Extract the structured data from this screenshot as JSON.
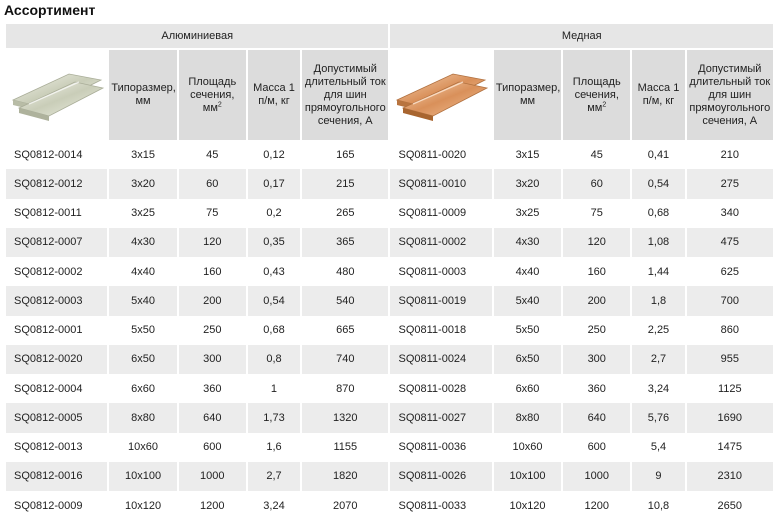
{
  "title": "Ассортимент",
  "groups": {
    "aluminum": "Алюминиевая",
    "copper": "Медная"
  },
  "columns": {
    "size": "Типоразмер, мм",
    "area": "Площадь сечения, мм",
    "area_sup": "2",
    "mass": "Масса 1 п/м, кг",
    "current": "Допустимый длительный ток для шин прямоугольного сечения, А"
  },
  "images": {
    "aluminum": "aluminum-bar-icon",
    "copper": "copper-bar-icon"
  },
  "rows": [
    {
      "al_code": "SQ0812-0014",
      "al_size": "3x15",
      "al_area": "45",
      "al_mass": "0,12",
      "al_current": "165",
      "cu_code": "SQ0811-0020",
      "cu_size": "3x15",
      "cu_area": "45",
      "cu_mass": "0,41",
      "cu_current": "210"
    },
    {
      "al_code": "SQ0812-0012",
      "al_size": "3x20",
      "al_area": "60",
      "al_mass": "0,17",
      "al_current": "215",
      "cu_code": "SQ0811-0010",
      "cu_size": "3x20",
      "cu_area": "60",
      "cu_mass": "0,54",
      "cu_current": "275"
    },
    {
      "al_code": "SQ0812-0011",
      "al_size": "3x25",
      "al_area": "75",
      "al_mass": "0,2",
      "al_current": "265",
      "cu_code": "SQ0811-0009",
      "cu_size": "3x25",
      "cu_area": "75",
      "cu_mass": "0,68",
      "cu_current": "340"
    },
    {
      "al_code": "SQ0812-0007",
      "al_size": "4x30",
      "al_area": "120",
      "al_mass": "0,35",
      "al_current": "365",
      "cu_code": "SQ0811-0002",
      "cu_size": "4x30",
      "cu_area": "120",
      "cu_mass": "1,08",
      "cu_current": "475"
    },
    {
      "al_code": "SQ0812-0002",
      "al_size": "4x40",
      "al_area": "160",
      "al_mass": "0,43",
      "al_current": "480",
      "cu_code": "SQ0811-0003",
      "cu_size": "4x40",
      "cu_area": "160",
      "cu_mass": "1,44",
      "cu_current": "625"
    },
    {
      "al_code": "SQ0812-0003",
      "al_size": "5x40",
      "al_area": "200",
      "al_mass": "0,54",
      "al_current": "540",
      "cu_code": "SQ0811-0019",
      "cu_size": "5x40",
      "cu_area": "200",
      "cu_mass": "1,8",
      "cu_current": "700"
    },
    {
      "al_code": "SQ0812-0001",
      "al_size": "5x50",
      "al_area": "250",
      "al_mass": "0,68",
      "al_current": "665",
      "cu_code": "SQ0811-0018",
      "cu_size": "5x50",
      "cu_area": "250",
      "cu_mass": "2,25",
      "cu_current": "860"
    },
    {
      "al_code": "SQ0812-0020",
      "al_size": "6x50",
      "al_area": "300",
      "al_mass": "0,8",
      "al_current": "740",
      "cu_code": "SQ0811-0024",
      "cu_size": "6x50",
      "cu_area": "300",
      "cu_mass": "2,7",
      "cu_current": "955"
    },
    {
      "al_code": "SQ0812-0004",
      "al_size": "6x60",
      "al_area": "360",
      "al_mass": "1",
      "al_current": "870",
      "cu_code": "SQ0811-0028",
      "cu_size": "6x60",
      "cu_area": "360",
      "cu_mass": "3,24",
      "cu_current": "1125"
    },
    {
      "al_code": "SQ0812-0005",
      "al_size": "8x80",
      "al_area": "640",
      "al_mass": "1,73",
      "al_current": "1320",
      "cu_code": "SQ0811-0027",
      "cu_size": "8x80",
      "cu_area": "640",
      "cu_mass": "5,76",
      "cu_current": "1690"
    },
    {
      "al_code": "SQ0812-0013",
      "al_size": "10x60",
      "al_area": "600",
      "al_mass": "1,6",
      "al_current": "1155",
      "cu_code": "SQ0811-0036",
      "cu_size": "10x60",
      "cu_area": "600",
      "cu_mass": "5,4",
      "cu_current": "1475"
    },
    {
      "al_code": "SQ0812-0016",
      "al_size": "10x100",
      "al_area": "1000",
      "al_mass": "2,7",
      "al_current": "1820",
      "cu_code": "SQ0811-0026",
      "cu_size": "10x100",
      "cu_area": "1000",
      "cu_mass": "9",
      "cu_current": "2310"
    },
    {
      "al_code": "SQ0812-0009",
      "al_size": "10x120",
      "al_area": "1200",
      "al_mass": "3,24",
      "al_current": "2070",
      "cu_code": "SQ0811-0033",
      "cu_size": "10x120",
      "cu_area": "1200",
      "cu_mass": "10,8",
      "cu_current": "2650"
    }
  ]
}
